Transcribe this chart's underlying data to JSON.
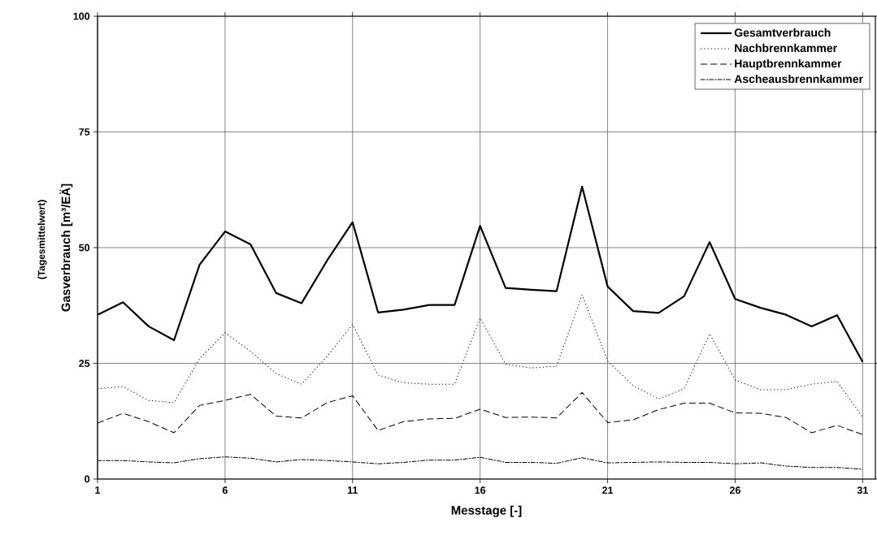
{
  "chart_data": {
    "type": "line",
    "xlabel": "Messtage [-]",
    "ylabel": "Gasverbrauch [m³/EÄ]",
    "annotations": [
      "(Tagesmittelwert)"
    ],
    "x": [
      1,
      2,
      3,
      4,
      5,
      6,
      7,
      8,
      9,
      10,
      11,
      12,
      13,
      14,
      15,
      16,
      17,
      18,
      19,
      20,
      21,
      22,
      23,
      24,
      25,
      26,
      27,
      28,
      29,
      30,
      31
    ],
    "xlim": [
      1,
      31.5
    ],
    "xticks": [
      1,
      6,
      11,
      16,
      21,
      26,
      31
    ],
    "ylim": [
      0,
      100
    ],
    "yticks": [
      0,
      25,
      50,
      75,
      100
    ],
    "grid": true,
    "legend": "top right",
    "marker": "none",
    "series": [
      {
        "name": "Gesamtverbrauch",
        "color": "#000000",
        "line_style": "solid",
        "values": [
          35.5,
          38.2,
          33,
          30,
          46.3,
          53.5,
          50.7,
          40.2,
          38,
          47.2,
          55.5,
          36,
          36.6,
          37.6,
          37.6,
          54.7,
          41.3,
          40.9,
          40.6,
          63.2,
          41.6,
          36.3,
          35.9,
          39.5,
          51.2,
          38.9,
          37,
          35.5,
          33,
          35.4,
          25.3
        ]
      },
      {
        "name": "Nachbrennkammer",
        "color": "#000000",
        "line_style": "dotted",
        "values": [
          19.5,
          20,
          17,
          16.5,
          26,
          31.6,
          27.6,
          22.8,
          20.5,
          26.5,
          33.4,
          22.5,
          20.8,
          20.5,
          20.5,
          34.8,
          24.8,
          24,
          24.4,
          39.8,
          25.5,
          20.2,
          17.3,
          19.5,
          31.4,
          21.4,
          19.3,
          19.3,
          20.5,
          21.1,
          13.4
        ]
      },
      {
        "name": "Hauptbrennkammer",
        "color": "#000000",
        "line_style": "dashed",
        "values": [
          12.1,
          14.2,
          12.4,
          10,
          15.9,
          17,
          18.3,
          13.6,
          13.2,
          16.5,
          18,
          10.5,
          12.4,
          13,
          13.1,
          15.1,
          13.3,
          13.4,
          13.2,
          18.7,
          12.2,
          12.8,
          15,
          16.4,
          16.4,
          14.3,
          14.2,
          13.3,
          10,
          11.6,
          9.6
        ]
      },
      {
        "name": "Ascheausbrennkammer",
        "color": "#000000",
        "line_style": "dashdot",
        "values": [
          4,
          4,
          3.7,
          3.5,
          4.4,
          4.8,
          4.5,
          3.7,
          4.2,
          4,
          3.7,
          3.3,
          3.6,
          4.1,
          4.1,
          4.7,
          3.6,
          3.6,
          3.4,
          4.6,
          3.5,
          3.6,
          3.7,
          3.6,
          3.6,
          3.3,
          3.5,
          2.8,
          2.5,
          2.5,
          2.1
        ]
      }
    ]
  }
}
